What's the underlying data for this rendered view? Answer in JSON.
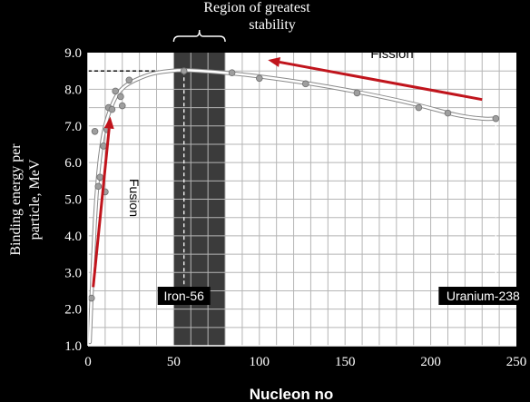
{
  "chart_data": {
    "type": "scatter",
    "xlabel": "Nucleon no",
    "ylabel_lines": [
      "Binding energy per",
      "particle, MeV"
    ],
    "xlim": [
      0,
      250
    ],
    "ylim": [
      1.0,
      9.0
    ],
    "x_ticks": [
      0,
      50,
      100,
      150,
      200,
      250
    ],
    "y_ticks": [
      "1.0",
      "2.0",
      "3.0",
      "4.0",
      "5.0",
      "6.0",
      "7.0",
      "8.0",
      "9.0"
    ],
    "grid": true,
    "points": [
      {
        "x": 2,
        "y": 2.3
      },
      {
        "x": 4,
        "y": 6.85
      },
      {
        "x": 6,
        "y": 5.35
      },
      {
        "x": 7,
        "y": 5.6
      },
      {
        "x": 9,
        "y": 6.45
      },
      {
        "x": 10,
        "y": 5.2
      },
      {
        "x": 11,
        "y": 6.9
      },
      {
        "x": 12,
        "y": 7.5
      },
      {
        "x": 14,
        "y": 7.45
      },
      {
        "x": 16,
        "y": 7.95
      },
      {
        "x": 19,
        "y": 7.8
      },
      {
        "x": 20,
        "y": 7.55
      },
      {
        "x": 24,
        "y": 8.25
      },
      {
        "x": 56,
        "y": 8.5
      },
      {
        "x": 84,
        "y": 8.45
      },
      {
        "x": 100,
        "y": 8.3
      },
      {
        "x": 127,
        "y": 8.15
      },
      {
        "x": 157,
        "y": 7.9
      },
      {
        "x": 193,
        "y": 7.5
      },
      {
        "x": 210,
        "y": 7.35
      },
      {
        "x": 238,
        "y": 7.2
      }
    ],
    "curve": [
      {
        "x": 1,
        "y": 1.1
      },
      {
        "x": 2,
        "y": 2.3
      },
      {
        "x": 4,
        "y": 4.4
      },
      {
        "x": 6,
        "y": 5.7
      },
      {
        "x": 8,
        "y": 6.5
      },
      {
        "x": 10,
        "y": 7.0
      },
      {
        "x": 13,
        "y": 7.45
      },
      {
        "x": 17,
        "y": 7.85
      },
      {
        "x": 22,
        "y": 8.1
      },
      {
        "x": 30,
        "y": 8.3
      },
      {
        "x": 40,
        "y": 8.45
      },
      {
        "x": 56,
        "y": 8.52
      },
      {
        "x": 80,
        "y": 8.45
      },
      {
        "x": 100,
        "y": 8.35
      },
      {
        "x": 130,
        "y": 8.15
      },
      {
        "x": 160,
        "y": 7.9
      },
      {
        "x": 190,
        "y": 7.6
      },
      {
        "x": 215,
        "y": 7.3
      },
      {
        "x": 230,
        "y": 7.2
      },
      {
        "x": 238,
        "y": 7.2
      }
    ],
    "stability_region": {
      "x_start": 50,
      "x_end": 80,
      "label_lines": [
        "Region of greatest",
        "stability"
      ]
    },
    "annotations": {
      "iron": {
        "label": "Iron-56",
        "x": 56,
        "peak_y": 8.5
      },
      "uranium": {
        "label": "Uranium-238",
        "x": 238,
        "y": 7.2
      },
      "fission": {
        "label": "Fission",
        "from": {
          "x": 230,
          "y": 7.72
        },
        "to": {
          "x": 105,
          "y": 8.8
        }
      },
      "fusion": {
        "label": "Fusion",
        "from": {
          "x": 3,
          "y": 2.6
        },
        "to": {
          "x": 13,
          "y": 7.25
        }
      }
    },
    "colors": {
      "background": "#000000",
      "plot_area": "#ffffff",
      "grid": "#b5b5b5",
      "stability_band": "#3b3b3b",
      "curve": "#ffffff",
      "points": "#9e9e9e",
      "arrows": "#c0141c"
    }
  }
}
